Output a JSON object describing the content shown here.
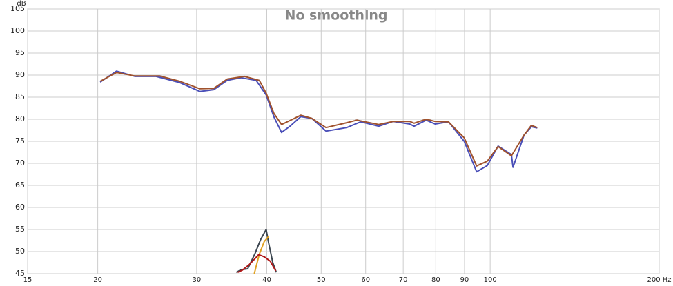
{
  "chart_data": {
    "type": "line",
    "title": "No smoothing",
    "y_label": "dB",
    "log_x": true,
    "grid": true,
    "xlim": [
      15,
      200
    ],
    "ylim": [
      45,
      105
    ],
    "xticks": [
      15,
      20,
      30,
      40,
      50,
      60,
      70,
      80,
      90,
      100,
      {
        "value": 200,
        "label": "200 Hz"
      }
    ],
    "yticks": [
      45,
      50,
      55,
      60,
      65,
      70,
      75,
      80,
      85,
      90,
      95,
      100,
      105
    ],
    "series": [
      {
        "color": "#4a4fb8",
        "x": [
          20.2,
          21.6,
          23.3,
          25.4,
          28.0,
          30.4,
          32.2,
          34.0,
          36.0,
          38.3,
          39.9,
          41.2,
          42.5,
          44.0,
          46.0,
          48.1,
          51.0,
          55.5,
          58.8,
          63.3,
          67.2,
          71.9,
          73.2,
          76.9,
          79.8,
          84.3,
          89.9,
          94.6,
          98.8,
          103.3,
          109.1,
          109.8,
          114.9,
          118.4,
          121.3
        ],
        "values": [
          88.4,
          90.9,
          89.7,
          89.7,
          88.3,
          86.3,
          86.7,
          88.8,
          89.4,
          88.8,
          85.5,
          80.5,
          77.0,
          78.4,
          80.6,
          80.2,
          77.3,
          78.1,
          79.4,
          78.4,
          79.5,
          78.9,
          78.4,
          79.8,
          78.9,
          79.4,
          75.0,
          68.1,
          69.5,
          73.9,
          72.0,
          69.1,
          76.4,
          78.3,
          78.0
        ]
      },
      {
        "color": "#a0522d",
        "x": [
          20.2,
          21.6,
          23.3,
          25.8,
          28.0,
          30.4,
          32.2,
          34.0,
          36.5,
          38.8,
          39.9,
          41.2,
          42.5,
          44.0,
          46.0,
          48.1,
          51.0,
          55.5,
          57.9,
          63.3,
          67.2,
          71.9,
          73.2,
          76.9,
          79.8,
          84.3,
          89.9,
          94.6,
          98.8,
          103.3,
          109.1,
          114.9,
          118.4,
          121.3
        ],
        "values": [
          88.6,
          90.6,
          89.8,
          89.8,
          88.6,
          86.9,
          87.0,
          89.1,
          89.7,
          88.8,
          85.9,
          81.3,
          78.8,
          79.7,
          80.9,
          80.2,
          78.1,
          79.2,
          79.8,
          78.8,
          79.5,
          79.5,
          79.1,
          80.0,
          79.5,
          79.4,
          75.8,
          69.4,
          70.5,
          73.8,
          71.7,
          76.4,
          78.6,
          78.1
        ]
      },
      {
        "color": "#3c4650",
        "x": [
          35.3,
          36.0,
          37.0,
          38.1,
          39.0,
          39.9,
          40.3,
          41.0,
          41.6
        ],
        "values": [
          45.3,
          45.9,
          46.1,
          49.5,
          52.7,
          55.0,
          52.0,
          47.5,
          45.3
        ]
      },
      {
        "color": "#e0a020",
        "x": [
          38.0,
          38.8,
          39.6,
          40.3
        ],
        "values": [
          45.0,
          49.4,
          52.3,
          53.4
        ]
      },
      {
        "color": "#b01818",
        "x": [
          35.5,
          36.2,
          37.2,
          38.7,
          39.6,
          40.6,
          41.5
        ],
        "values": [
          45.3,
          45.8,
          47.0,
          49.3,
          48.8,
          47.8,
          45.6
        ]
      }
    ]
  }
}
